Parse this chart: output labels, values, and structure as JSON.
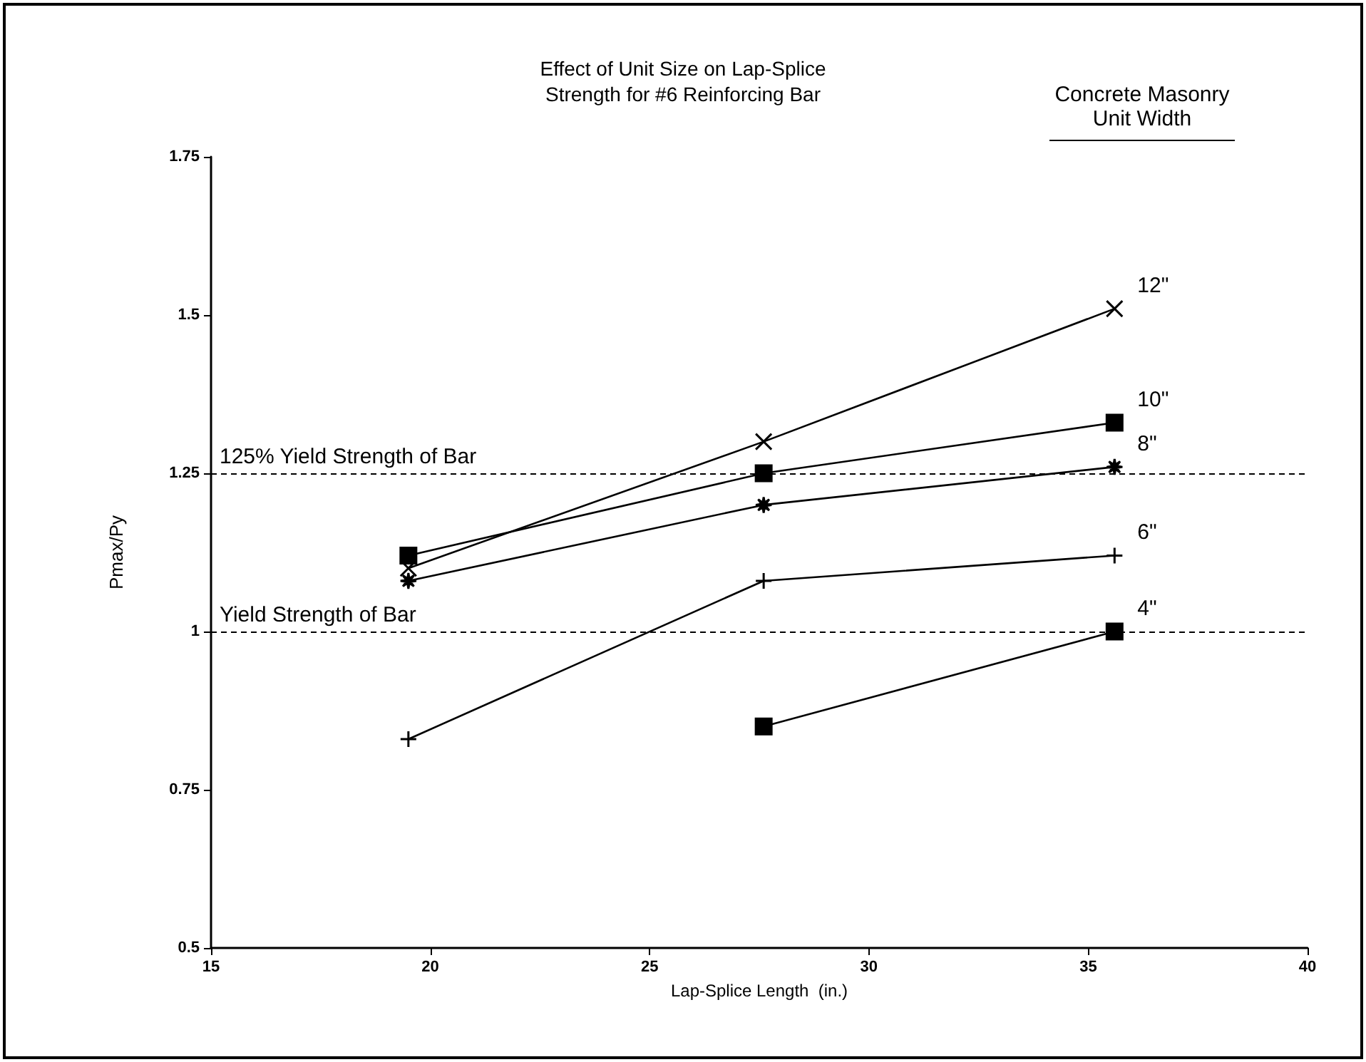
{
  "chart_data": {
    "type": "line",
    "title": "Effect of Unit Size on Lap-Splice\nStrength for #6 Reinforcing Bar",
    "xlabel": "Lap-Splice Length  (in.)",
    "ylabel": "Pmax/Py",
    "legend_title": "Concrete Masonry Unit Width",
    "xlim": [
      15,
      40
    ],
    "xticks": [
      15,
      20,
      25,
      30,
      35,
      40
    ],
    "ylim": [
      0.5,
      1.75
    ],
    "yticks": [
      0.5,
      0.75,
      1,
      1.25,
      1.5,
      1.75
    ],
    "grid": false,
    "legend": false,
    "line_style": "solid",
    "series": [
      {
        "name": "12\"",
        "color": "#000000",
        "marker": "cross",
        "x": [
          19.5,
          27.6,
          35.6
        ],
        "values": [
          1.1,
          1.3,
          1.51
        ]
      },
      {
        "name": "10\"",
        "color": "#000000",
        "marker": "square",
        "x": [
          19.5,
          27.6,
          35.6
        ],
        "values": [
          1.12,
          1.25,
          1.33
        ]
      },
      {
        "name": "8\"",
        "color": "#000000",
        "marker": "star",
        "x": [
          19.5,
          27.6,
          35.6
        ],
        "values": [
          1.08,
          1.2,
          1.26
        ]
      },
      {
        "name": "6\"",
        "color": "#000000",
        "marker": "plus",
        "x": [
          19.5,
          27.6,
          35.6
        ],
        "values": [
          0.83,
          1.08,
          1.12
        ]
      },
      {
        "name": "4\"",
        "color": "#000000",
        "marker": "square",
        "x": [
          27.6,
          35.6
        ],
        "values": [
          0.85,
          1.0
        ]
      }
    ],
    "ref_lines": [
      {
        "axis": "y",
        "value": 1.25,
        "label": "125% Yield Strength of Bar",
        "line_style": "dashed",
        "color": "#000000"
      },
      {
        "axis": "y",
        "value": 1,
        "label": "Yield Strength of Bar",
        "line_style": "dashed",
        "color": "#000000"
      }
    ]
  }
}
